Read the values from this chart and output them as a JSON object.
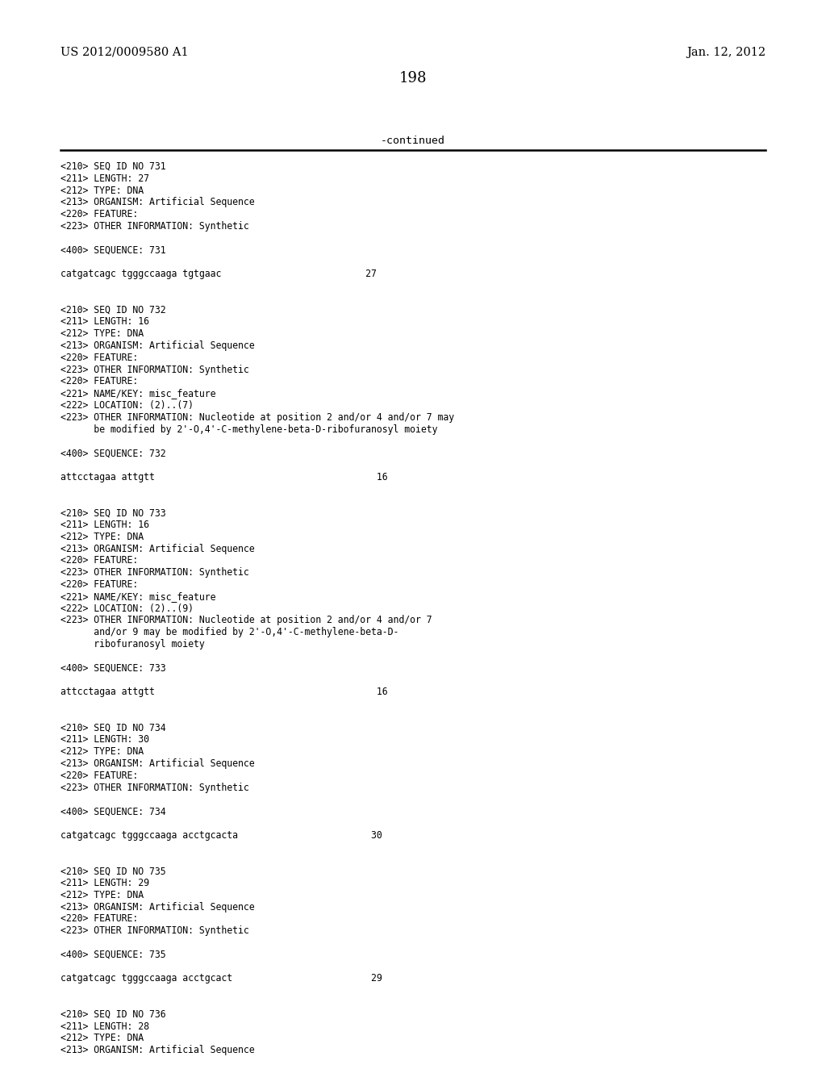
{
  "patent_number": "US 2012/0009580 A1",
  "date": "Jan. 12, 2012",
  "page_number": "198",
  "continued_label": "-continued",
  "background_color": "#ffffff",
  "text_color": "#000000",
  "fig_width": 10.24,
  "fig_height": 13.2,
  "dpi": 100,
  "header_fontsize": 10.5,
  "page_num_fontsize": 13,
  "mono_fontsize": 8.3,
  "content_lines": [
    "<210> SEQ ID NO 731",
    "<211> LENGTH: 27",
    "<212> TYPE: DNA",
    "<213> ORGANISM: Artificial Sequence",
    "<220> FEATURE:",
    "<223> OTHER INFORMATION: Synthetic",
    "",
    "<400> SEQUENCE: 731",
    "",
    "catgatcagc tgggccaaga tgtgaac                          27",
    "",
    "",
    "<210> SEQ ID NO 732",
    "<211> LENGTH: 16",
    "<212> TYPE: DNA",
    "<213> ORGANISM: Artificial Sequence",
    "<220> FEATURE:",
    "<223> OTHER INFORMATION: Synthetic",
    "<220> FEATURE:",
    "<221> NAME/KEY: misc_feature",
    "<222> LOCATION: (2)..(7)",
    "<223> OTHER INFORMATION: Nucleotide at position 2 and/or 4 and/or 7 may",
    "      be modified by 2'-O,4'-C-methylene-beta-D-ribofuranosyl moiety",
    "",
    "<400> SEQUENCE: 732",
    "",
    "attcctagaa attgtt                                        16",
    "",
    "",
    "<210> SEQ ID NO 733",
    "<211> LENGTH: 16",
    "<212> TYPE: DNA",
    "<213> ORGANISM: Artificial Sequence",
    "<220> FEATURE:",
    "<223> OTHER INFORMATION: Synthetic",
    "<220> FEATURE:",
    "<221> NAME/KEY: misc_feature",
    "<222> LOCATION: (2)..(9)",
    "<223> OTHER INFORMATION: Nucleotide at position 2 and/or 4 and/or 7",
    "      and/or 9 may be modified by 2'-O,4'-C-methylene-beta-D-",
    "      ribofuranosyl moiety",
    "",
    "<400> SEQUENCE: 733",
    "",
    "attcctagaa attgtt                                        16",
    "",
    "",
    "<210> SEQ ID NO 734",
    "<211> LENGTH: 30",
    "<212> TYPE: DNA",
    "<213> ORGANISM: Artificial Sequence",
    "<220> FEATURE:",
    "<223> OTHER INFORMATION: Synthetic",
    "",
    "<400> SEQUENCE: 734",
    "",
    "catgatcagc tgggccaaga acctgcacta                        30",
    "",
    "",
    "<210> SEQ ID NO 735",
    "<211> LENGTH: 29",
    "<212> TYPE: DNA",
    "<213> ORGANISM: Artificial Sequence",
    "<220> FEATURE:",
    "<223> OTHER INFORMATION: Synthetic",
    "",
    "<400> SEQUENCE: 735",
    "",
    "catgatcagc tgggccaaga acctgcact                         29",
    "",
    "",
    "<210> SEQ ID NO 736",
    "<211> LENGTH: 28",
    "<212> TYPE: DNA",
    "<213> ORGANISM: Artificial Sequence"
  ]
}
